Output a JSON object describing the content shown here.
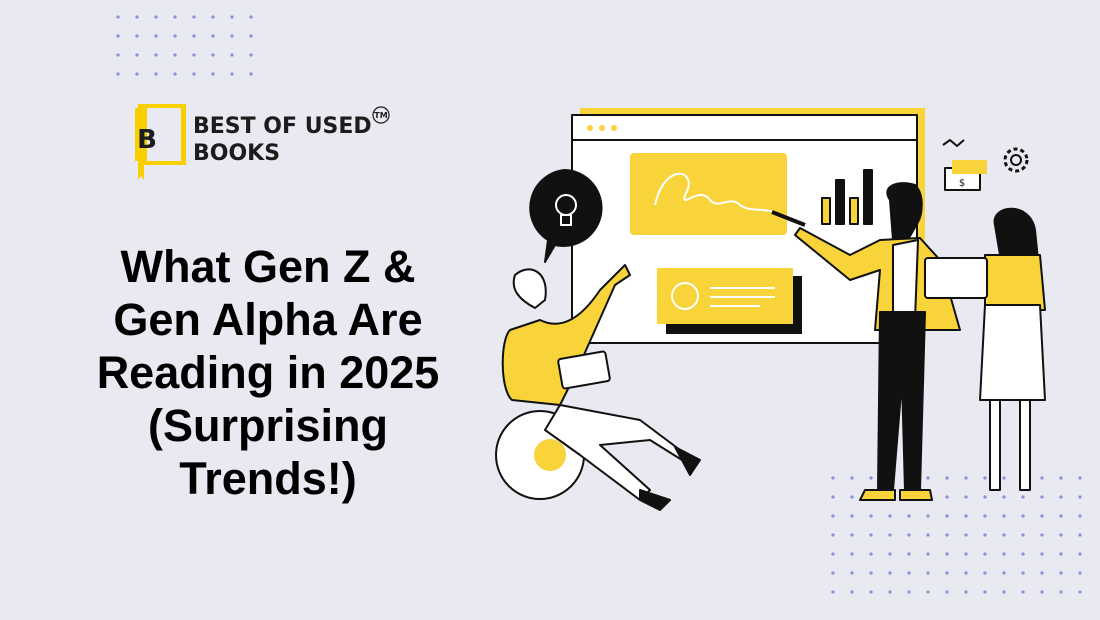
{
  "logo": {
    "letter": "B",
    "line1": "BEST OF USED",
    "line2": "BOOKS",
    "trademark": "TM"
  },
  "headline": {
    "lines": [
      "What Gen Z &",
      "Gen Alpha Are",
      "Reading in 2025",
      "(Surprising",
      "Trends!)"
    ]
  },
  "illustration": {
    "bill_symbol": "$"
  }
}
